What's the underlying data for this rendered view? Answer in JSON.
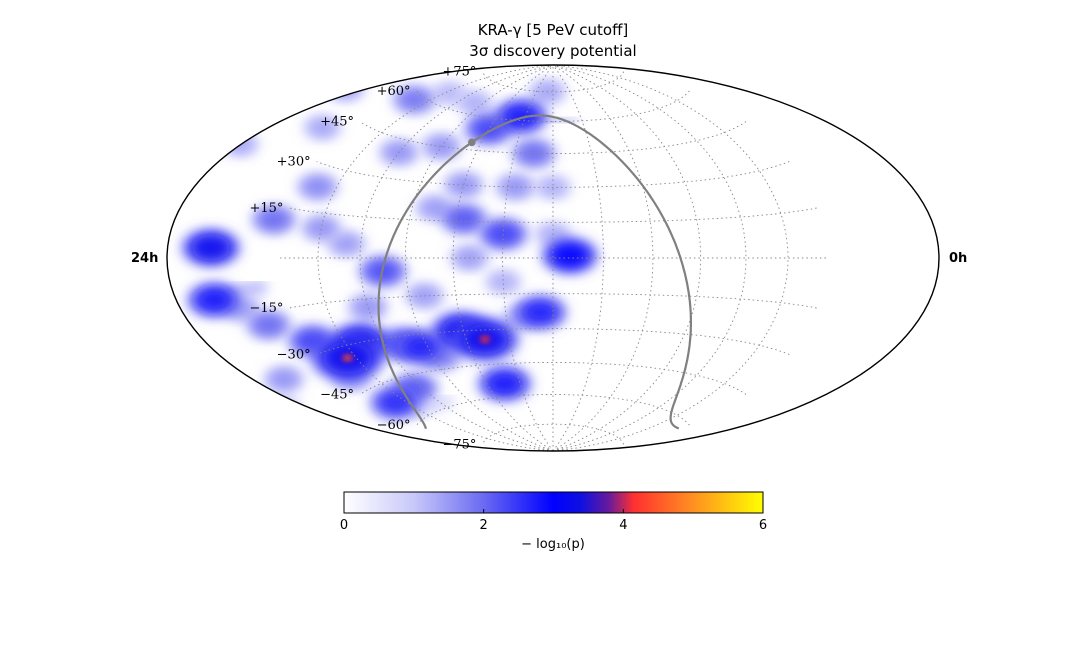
{
  "title": "KRA-γ [5 PeV cutoff]",
  "subtitle": "3σ discovery potential",
  "chart_data": {
    "type": "heatmap",
    "projection": "hammer-aitoff (equatorial)",
    "grid": true,
    "ra_labels": {
      "left": "24h",
      "right": "0h"
    },
    "lat_ticks": [
      {
        "dec": 75,
        "label": "+75°"
      },
      {
        "dec": 60,
        "label": "+60°"
      },
      {
        "dec": 45,
        "label": "+45°"
      },
      {
        "dec": 30,
        "label": "+30°"
      },
      {
        "dec": 15,
        "label": "+15°"
      },
      {
        "dec": -15,
        "label": "−15°"
      },
      {
        "dec": -30,
        "label": "−30°"
      },
      {
        "dec": -45,
        "label": "−45°"
      },
      {
        "dec": -60,
        "label": "−60°"
      },
      {
        "dec": -75,
        "label": "−75°"
      }
    ],
    "colorbar": {
      "label": "− log₁₀(p)",
      "range": [
        0,
        6
      ],
      "ticks": [
        0,
        2,
        4,
        6
      ],
      "colors": [
        {
          "v": 0,
          "color": "#ffffff"
        },
        {
          "v": 1,
          "color": "#c8c8fa"
        },
        {
          "v": 2,
          "color": "#6a6af2"
        },
        {
          "v": 3,
          "color": "#0000ff"
        },
        {
          "v": 3.4,
          "color": "#1010e0"
        },
        {
          "v": 3.8,
          "color": "#6a1a9a"
        },
        {
          "v": 4.15,
          "color": "#ff3030"
        },
        {
          "v": 5,
          "color": "#ff9020"
        },
        {
          "v": 6,
          "color": "#ffff00"
        }
      ]
    },
    "galactic_plane_color": "#808080",
    "galactic_center_marker": true,
    "hotspots": [
      {
        "l": 157,
        "b": -34,
        "value": 4.6
      },
      {
        "l": 47,
        "b": -34,
        "value": 4.1
      },
      {
        "l": 138,
        "b": -30,
        "value": 3.3
      },
      {
        "l": 62,
        "b": -30,
        "value": 3.3
      },
      {
        "l": 95,
        "b": -35,
        "value": 2.7
      },
      {
        "l": 108,
        "b": -33,
        "value": 2.4
      },
      {
        "l": 175,
        "b": -26,
        "value": 2.4
      },
      {
        "l": 205,
        "b": -18,
        "value": 2.0
      },
      {
        "l": 250,
        "b": 2,
        "value": 3.2
      },
      {
        "l": 253,
        "b": -8,
        "value": 2.8
      },
      {
        "l": -10,
        "b": 1,
        "value": 3.0
      },
      {
        "l": 8,
        "b": -23,
        "value": 2.7
      },
      {
        "l": 44,
        "b": -54,
        "value": 2.8
      },
      {
        "l": 160,
        "b": -52,
        "value": 2.6
      },
      {
        "l": 127,
        "b": -50,
        "value": 2.2
      },
      {
        "l": 35,
        "b": 62,
        "value": 2.8
      },
      {
        "l": 60,
        "b": 55,
        "value": 2.4
      },
      {
        "l": 15,
        "b": 45,
        "value": 2.0
      },
      {
        "l": 30,
        "b": 10,
        "value": 2.4
      },
      {
        "l": 55,
        "b": 16,
        "value": 2.2
      },
      {
        "l": 105,
        "b": -5,
        "value": 2.3
      },
      {
        "l": 190,
        "b": 11,
        "value": 2.0
      },
      {
        "l": 165,
        "b": 58,
        "value": 1.9
      },
      {
        "l": 120,
        "b": 40,
        "value": 1.6
      },
      {
        "l": 90,
        "b": 45,
        "value": 1.6
      },
      {
        "l": 60,
        "b": 30,
        "value": 1.6
      },
      {
        "l": 25,
        "b": 30,
        "value": 1.6
      },
      {
        "l": 150,
        "b": 10,
        "value": 1.6
      },
      {
        "l": 165,
        "b": 23,
        "value": 1.7
      },
      {
        "l": 130,
        "b": 5,
        "value": 1.5
      },
      {
        "l": 50,
        "b": 0,
        "value": 1.5
      },
      {
        "l": 80,
        "b": -15,
        "value": 1.5
      },
      {
        "l": 120,
        "b": -18,
        "value": 1.6
      },
      {
        "l": 230,
        "b": -30,
        "value": 1.6
      },
      {
        "l": 240,
        "b": 45,
        "value": 1.5
      },
      {
        "l": 205,
        "b": 38,
        "value": 1.4
      },
      {
        "l": 20,
        "b": -25,
        "value": 1.4
      },
      {
        "l": 0,
        "b": 30,
        "value": 1.3
      },
      {
        "l": 30,
        "b": -10,
        "value": 1.3
      },
      {
        "l": 170,
        "b": -40,
        "value": 1.5
      },
      {
        "l": 225,
        "b": -12,
        "value": 1.5
      },
      {
        "l": 270,
        "b": 20,
        "value": 1.4
      },
      {
        "l": 265,
        "b": -30,
        "value": 1.2
      },
      {
        "l": 10,
        "b": 75,
        "value": 1.4
      },
      {
        "l": 100,
        "b": 65,
        "value": 1.3
      },
      {
        "l": 145,
        "b": 65,
        "value": 1.2
      },
      {
        "l": 85,
        "b": -40,
        "value": 1.8
      },
      {
        "l": 0,
        "b": 10,
        "value": 1.3
      },
      {
        "l": 75,
        "b": 20,
        "value": 1.5
      }
    ],
    "bands": [
      {
        "l0": 200,
        "l1": 255,
        "b": -8,
        "width": 14,
        "value": 1.8
      },
      {
        "l0": 110,
        "l1": 160,
        "b": -58,
        "width": 10,
        "value": 1.4
      },
      {
        "l0": -20,
        "l1": 60,
        "b": 60,
        "width": 12,
        "value": 1.3
      }
    ]
  }
}
